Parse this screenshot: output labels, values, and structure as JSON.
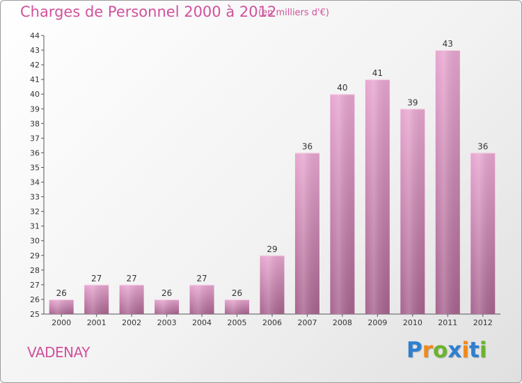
{
  "header": {
    "title": "Charges de Personnel 2000 à 2012",
    "subtitle": "(en milliers d'€)"
  },
  "footer": {
    "commune": "VADENAY",
    "logo": {
      "letters": [
        "P",
        "r",
        "o",
        "x",
        "i",
        "t",
        "i"
      ],
      "colors": [
        "#2e7fd0",
        "#f08a1c",
        "#6ab42d",
        "#2e7fd0",
        "#f08a1c",
        "#2e7fd0",
        "#6ab42d"
      ]
    }
  },
  "colors": {
    "bar_top": "#e8a6d0",
    "bar_bottom": "#a8648f",
    "accent": "#d0529b"
  },
  "chart_data": {
    "type": "bar",
    "categories": [
      "2000",
      "2001",
      "2002",
      "2003",
      "2004",
      "2005",
      "2006",
      "2007",
      "2008",
      "2009",
      "2010",
      "2011",
      "2012"
    ],
    "values": [
      26,
      27,
      27,
      26,
      27,
      26,
      29,
      36,
      40,
      41,
      39,
      43,
      36
    ],
    "ylim": [
      25,
      44
    ],
    "yticks": [
      25,
      26,
      27,
      28,
      29,
      30,
      31,
      32,
      33,
      34,
      35,
      36,
      37,
      38,
      39,
      40,
      41,
      42,
      43,
      44
    ],
    "grid": false
  }
}
